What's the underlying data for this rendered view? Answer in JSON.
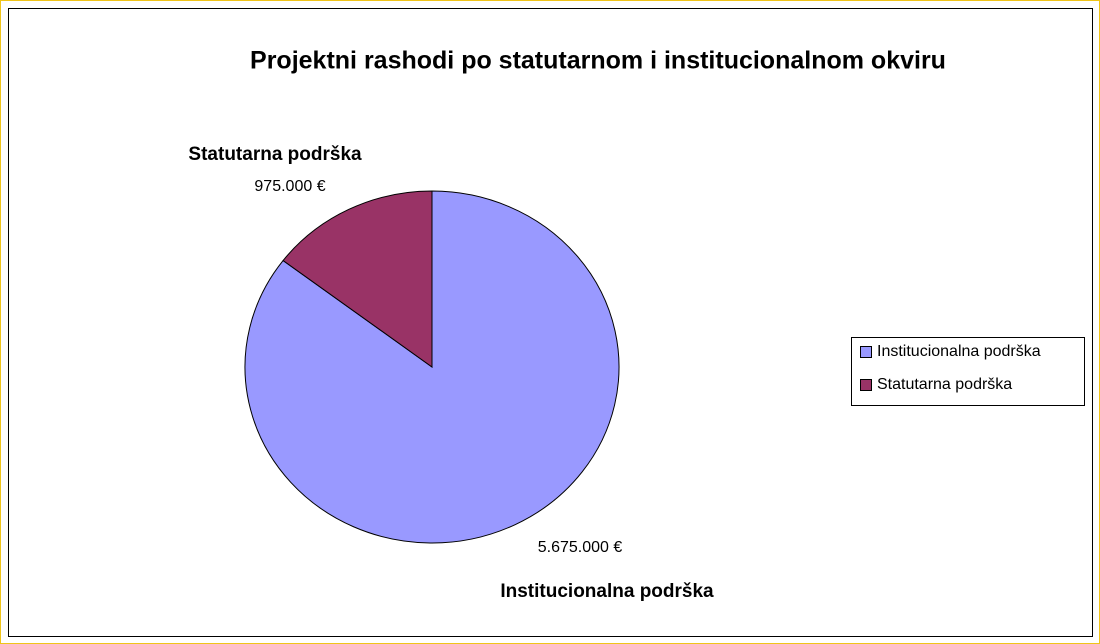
{
  "chart_data": {
    "type": "pie",
    "title": "Projektni rashodi po statutarnom i institucionalnom okviru",
    "categories": [
      "Institucionalna podrška",
      "Statutarna podrška"
    ],
    "values": [
      5675000,
      975000
    ],
    "value_labels": [
      "5.675.000 €",
      "975.000 €"
    ],
    "colors": [
      "#9999ff",
      "#993366"
    ],
    "legend": "right"
  }
}
